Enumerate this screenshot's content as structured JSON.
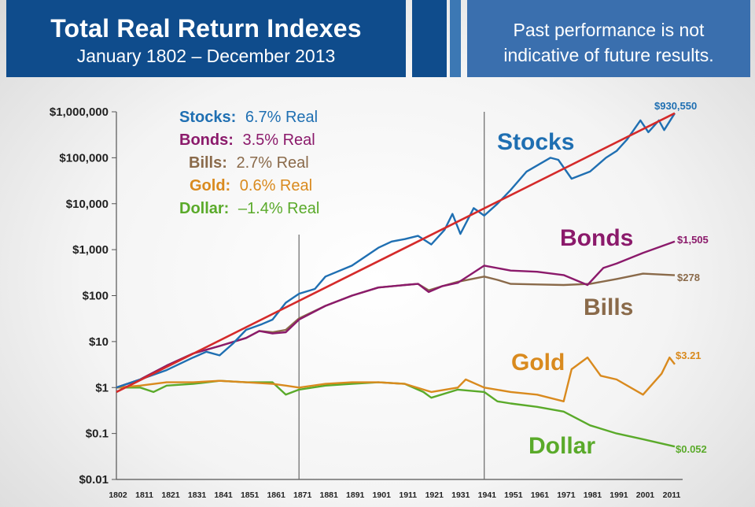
{
  "header": {
    "title": "Total Real Return Indexes",
    "subtitle": "January 1802 – December 2013",
    "disclaimer_line1": "Past performance is not",
    "disclaimer_line2": "indicative of future results."
  },
  "legend": [
    {
      "name": "Stocks:",
      "text": "6.7% Real",
      "color": "#1f6fb2"
    },
    {
      "name": "Bonds:",
      "text": "3.5% Real",
      "color": "#8b1a6b"
    },
    {
      "name": "Bills:",
      "text": "2.7% Real",
      "color": "#8a6a4a"
    },
    {
      "name": "Gold:",
      "text": "0.6% Real",
      "color": "#d98a1e"
    },
    {
      "name": "Dollar:",
      "text": "–1.4% Real",
      "color": "#5aaa2a"
    }
  ],
  "series_labels": {
    "stocks": "Stocks",
    "bonds": "Bonds",
    "bills": "Bills",
    "gold": "Gold",
    "dollar": "Dollar"
  },
  "end_labels": {
    "stocks": "$930,550",
    "bonds": "$1,505",
    "bills": "$278",
    "gold": "$3.21",
    "dollar": "$0.052"
  },
  "chart_data": {
    "type": "line",
    "title": "Total Real Return Indexes",
    "subtitle": "January 1802 – December 2013",
    "yscale": "log",
    "ylim": [
      0.01,
      1000000
    ],
    "xlim": [
      1802,
      2013
    ],
    "y_ticks": [
      {
        "value": 1000000,
        "label": "$1,000,000"
      },
      {
        "value": 100000,
        "label": "$100,000"
      },
      {
        "value": 10000,
        "label": "$10,000"
      },
      {
        "value": 1000,
        "label": "$1,000"
      },
      {
        "value": 100,
        "label": "$100"
      },
      {
        "value": 10,
        "label": "$10"
      },
      {
        "value": 1,
        "label": "$1"
      },
      {
        "value": 0.1,
        "label": "$0.1"
      },
      {
        "value": 0.01,
        "label": "$0.01"
      }
    ],
    "x_ticks": [
      "1802",
      "1811",
      "1821",
      "1831",
      "1841",
      "1851",
      "1861",
      "1871",
      "1881",
      "1891",
      "1901",
      "1911",
      "1921",
      "1931",
      "1941",
      "1951",
      "1961",
      "1971",
      "1981",
      "1991",
      "2001",
      "2011"
    ],
    "vertical_lines": [
      1871,
      1941
    ],
    "trend_line": {
      "color": "#d42a2a",
      "from": [
        1802,
        0.8
      ],
      "to": [
        2013,
        930550
      ]
    },
    "series": [
      {
        "name": "Stocks",
        "color": "#1f6fb2",
        "points": [
          [
            1802,
            1
          ],
          [
            1811,
            1.5
          ],
          [
            1821,
            2.4
          ],
          [
            1831,
            4.5
          ],
          [
            1836,
            6
          ],
          [
            1841,
            5
          ],
          [
            1846,
            9
          ],
          [
            1851,
            18
          ],
          [
            1857,
            24
          ],
          [
            1861,
            30
          ],
          [
            1866,
            70
          ],
          [
            1871,
            110
          ],
          [
            1877,
            140
          ],
          [
            1881,
            260
          ],
          [
            1891,
            450
          ],
          [
            1901,
            1100
          ],
          [
            1906,
            1500
          ],
          [
            1911,
            1700
          ],
          [
            1916,
            2000
          ],
          [
            1921,
            1300
          ],
          [
            1926,
            2700
          ],
          [
            1929,
            6000
          ],
          [
            1932,
            2200
          ],
          [
            1937,
            8000
          ],
          [
            1941,
            5500
          ],
          [
            1946,
            10000
          ],
          [
            1951,
            20000
          ],
          [
            1957,
            50000
          ],
          [
            1966,
            100000
          ],
          [
            1969,
            90000
          ],
          [
            1974,
            35000
          ],
          [
            1981,
            50000
          ],
          [
            1987,
            100000
          ],
          [
            1991,
            140000
          ],
          [
            1995,
            250000
          ],
          [
            2000,
            650000
          ],
          [
            2003,
            360000
          ],
          [
            2007,
            650000
          ],
          [
            2009,
            400000
          ],
          [
            2013,
            930550
          ]
        ]
      },
      {
        "name": "Bonds",
        "color": "#8b1a6b",
        "points": [
          [
            1802,
            1
          ],
          [
            1811,
            1.5
          ],
          [
            1821,
            3
          ],
          [
            1831,
            5.5
          ],
          [
            1841,
            8
          ],
          [
            1851,
            12
          ],
          [
            1856,
            17
          ],
          [
            1861,
            15
          ],
          [
            1866,
            16
          ],
          [
            1871,
            30
          ],
          [
            1881,
            60
          ],
          [
            1891,
            100
          ],
          [
            1901,
            150
          ],
          [
            1911,
            170
          ],
          [
            1916,
            180
          ],
          [
            1920,
            120
          ],
          [
            1925,
            160
          ],
          [
            1931,
            190
          ],
          [
            1941,
            450
          ],
          [
            1951,
            350
          ],
          [
            1961,
            330
          ],
          [
            1971,
            280
          ],
          [
            1980,
            170
          ],
          [
            1986,
            400
          ],
          [
            1991,
            500
          ],
          [
            2001,
            850
          ],
          [
            2013,
            1505
          ]
        ]
      },
      {
        "name": "Bills",
        "color": "#8a6a4a",
        "points": [
          [
            1802,
            1
          ],
          [
            1811,
            1.5
          ],
          [
            1821,
            3
          ],
          [
            1831,
            5.5
          ],
          [
            1841,
            8
          ],
          [
            1851,
            12
          ],
          [
            1856,
            17
          ],
          [
            1861,
            16
          ],
          [
            1866,
            18
          ],
          [
            1871,
            32
          ],
          [
            1881,
            60
          ],
          [
            1891,
            100
          ],
          [
            1901,
            150
          ],
          [
            1911,
            170
          ],
          [
            1916,
            180
          ],
          [
            1920,
            130
          ],
          [
            1925,
            160
          ],
          [
            1931,
            200
          ],
          [
            1941,
            260
          ],
          [
            1946,
            220
          ],
          [
            1951,
            180
          ],
          [
            1961,
            175
          ],
          [
            1971,
            170
          ],
          [
            1981,
            180
          ],
          [
            1991,
            230
          ],
          [
            2001,
            300
          ],
          [
            2013,
            278
          ]
        ]
      },
      {
        "name": "Gold",
        "color": "#d98a1e",
        "points": [
          [
            1802,
            1
          ],
          [
            1811,
            1.1
          ],
          [
            1821,
            1.3
          ],
          [
            1831,
            1.3
          ],
          [
            1841,
            1.4
          ],
          [
            1851,
            1.3
          ],
          [
            1861,
            1.2
          ],
          [
            1866,
            1.1
          ],
          [
            1871,
            1.0
          ],
          [
            1881,
            1.2
          ],
          [
            1891,
            1.3
          ],
          [
            1901,
            1.3
          ],
          [
            1911,
            1.2
          ],
          [
            1921,
            0.8
          ],
          [
            1931,
            1.0
          ],
          [
            1934,
            1.5
          ],
          [
            1941,
            1.0
          ],
          [
            1951,
            0.8
          ],
          [
            1961,
            0.7
          ],
          [
            1971,
            0.5
          ],
          [
            1974,
            2.5
          ],
          [
            1980,
            4.5
          ],
          [
            1985,
            1.8
          ],
          [
            1991,
            1.5
          ],
          [
            2001,
            0.7
          ],
          [
            2008,
            2.0
          ],
          [
            2011,
            4.5
          ],
          [
            2013,
            3.21
          ]
        ]
      },
      {
        "name": "Dollar",
        "color": "#5aaa2a",
        "points": [
          [
            1802,
            1
          ],
          [
            1811,
            1.0
          ],
          [
            1816,
            0.8
          ],
          [
            1821,
            1.1
          ],
          [
            1831,
            1.2
          ],
          [
            1841,
            1.4
          ],
          [
            1851,
            1.3
          ],
          [
            1861,
            1.3
          ],
          [
            1866,
            0.7
          ],
          [
            1871,
            0.9
          ],
          [
            1881,
            1.1
          ],
          [
            1891,
            1.2
          ],
          [
            1901,
            1.3
          ],
          [
            1911,
            1.2
          ],
          [
            1918,
            0.8
          ],
          [
            1921,
            0.6
          ],
          [
            1931,
            0.9
          ],
          [
            1941,
            0.8
          ],
          [
            1946,
            0.5
          ],
          [
            1951,
            0.45
          ],
          [
            1961,
            0.38
          ],
          [
            1971,
            0.3
          ],
          [
            1981,
            0.15
          ],
          [
            1991,
            0.1
          ],
          [
            2001,
            0.075
          ],
          [
            2013,
            0.052
          ]
        ]
      }
    ],
    "legend_entries": [
      "Stocks: 6.7% Real",
      "Bonds: 3.5% Real",
      "Bills: 2.7% Real",
      "Gold: 0.6% Real",
      "Dollar: –1.4% Real"
    ],
    "annotations": [
      "$930,550",
      "$1,505",
      "$278",
      "$3.21",
      "$0.052"
    ],
    "grid": false
  }
}
